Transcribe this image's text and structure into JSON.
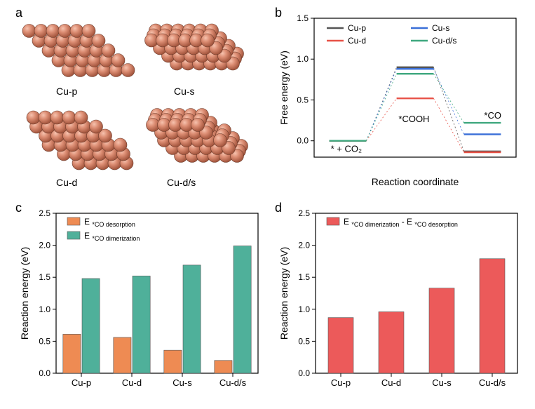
{
  "panel_a": {
    "label": "a",
    "structures": [
      {
        "name": "Cu-p"
      },
      {
        "name": "Cu-s"
      },
      {
        "name": "Cu-d"
      },
      {
        "name": "Cu-d/s"
      }
    ],
    "atom_fill": "#d9886f",
    "atom_stroke": "#7a4030",
    "atom_highlight": "#f2b39c",
    "atom_shadow": "#a85a45"
  },
  "panel_b": {
    "label": "b",
    "type": "line",
    "ylabel": "Free energy (eV)",
    "xlabel": "Reaction coordinate",
    "ylim": [
      0,
      1.5
    ],
    "ytick_step": 0.5,
    "yticks": [
      0.0,
      0.5,
      1.0,
      1.5
    ],
    "series": [
      {
        "name": "Cu-p",
        "color": "#555555",
        "values": [
          0.0,
          0.9,
          -0.13
        ]
      },
      {
        "name": "Cu-s",
        "color": "#3a6fd8",
        "values": [
          0.0,
          0.88,
          0.08
        ]
      },
      {
        "name": "Cu-d",
        "color": "#e85247",
        "values": [
          0.0,
          0.52,
          -0.14
        ]
      },
      {
        "name": "Cu-d/s",
        "color": "#3fa87f",
        "values": [
          0.0,
          0.82,
          0.22
        ]
      }
    ],
    "step_labels": [
      "* + CO₂",
      "*COOH",
      "*CO"
    ],
    "legend_order": [
      [
        "Cu-p",
        "Cu-s"
      ],
      [
        "Cu-d",
        "Cu-d/s"
      ]
    ],
    "background_color": "#ffffff",
    "axis_color": "#000000",
    "label_fontsize": 14,
    "tick_fontsize": 12
  },
  "panel_c": {
    "label": "c",
    "type": "bar",
    "ylabel": "Reaction energy (eV)",
    "ylim": [
      0.0,
      2.5
    ],
    "ytick_step": 0.5,
    "yticks": [
      0.0,
      0.5,
      1.0,
      1.5,
      2.0,
      2.5
    ],
    "categories": [
      "Cu-p",
      "Cu-d",
      "Cu-s",
      "Cu-d/s"
    ],
    "series": [
      {
        "name": "E *CO desorption",
        "color": "#ee8b53",
        "values": [
          0.61,
          0.56,
          0.36,
          0.2
        ]
      },
      {
        "name": "E *CO dimerization",
        "color": "#4fb09a",
        "values": [
          1.48,
          1.52,
          1.69,
          1.99
        ]
      }
    ],
    "bar_width": 0.35,
    "background_color": "#ffffff",
    "axis_color": "#000000",
    "label_fontsize": 14,
    "tick_fontsize": 12
  },
  "panel_d": {
    "label": "d",
    "type": "bar",
    "ylabel": "Reaction energy (eV)",
    "ylim": [
      0.0,
      2.5
    ],
    "ytick_step": 0.5,
    "yticks": [
      0.0,
      0.5,
      1.0,
      1.5,
      2.0,
      2.5
    ],
    "categories": [
      "Cu-p",
      "Cu-d",
      "Cu-s",
      "Cu-d/s"
    ],
    "series": [
      {
        "name": "E *CO dimerization - E *CO desorption",
        "color": "#ec5a5a",
        "values": [
          0.87,
          0.96,
          1.33,
          1.79
        ]
      }
    ],
    "bar_width": 0.5,
    "background_color": "#ffffff",
    "axis_color": "#000000",
    "label_fontsize": 14,
    "tick_fontsize": 12
  }
}
